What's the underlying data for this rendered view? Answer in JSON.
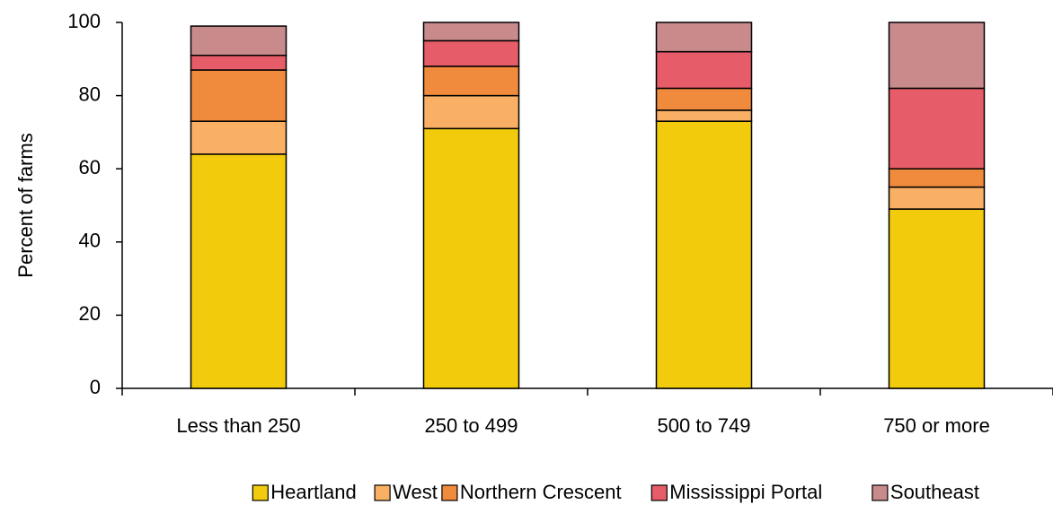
{
  "chart_data": {
    "type": "stacked-bar",
    "y_label": "Percent of farms",
    "categories": [
      "Less than 250",
      "250 to 499",
      "500 to 749",
      "750 or more"
    ],
    "series": [
      {
        "name": "Heartland",
        "color": "#f2cc0c",
        "values": [
          64,
          71,
          73,
          49
        ]
      },
      {
        "name": "West",
        "color": "#f9b064",
        "values": [
          9,
          9,
          3,
          6
        ]
      },
      {
        "name": "Northern Crescent",
        "color": "#f08a3c",
        "values": [
          14,
          8,
          6,
          5
        ]
      },
      {
        "name": "Mississippi Portal",
        "color": "#e65c68",
        "values": [
          4,
          7,
          10,
          22
        ]
      },
      {
        "name": "Southeast",
        "color": "#c98a8c",
        "values": [
          8,
          5,
          8,
          18
        ]
      }
    ],
    "ylim": [
      0,
      100
    ],
    "yticks": [
      0,
      20,
      40,
      60,
      80,
      100
    ],
    "legend": "bottom"
  }
}
